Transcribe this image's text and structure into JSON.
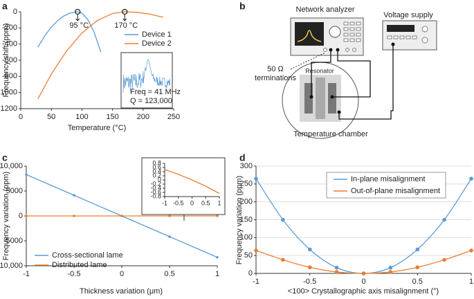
{
  "panel_labels": [
    "a",
    "b",
    "c",
    "d"
  ],
  "chart_data": [
    {
      "type": "line",
      "ylabel": "Frequency shift (ppm)",
      "xlabel": "Temperature (°C)",
      "xlim": [
        0,
        250
      ],
      "xticks": [
        0,
        50,
        100,
        150,
        200,
        250
      ],
      "ylim": [
        -1200,
        0
      ],
      "yticks": [
        0,
        -200,
        -400,
        -600,
        -800,
        -1000,
        -1200
      ],
      "grid": false,
      "legend": "upper right",
      "peak_markers": true,
      "annotations": [
        "95 °C",
        "170 °C"
      ],
      "inset_text": [
        "Freq = 41 MHz",
        "Q = 123,000"
      ],
      "series": [
        {
          "name": "Device 1",
          "color": "#5b9bd5",
          "x": [
            28,
            40,
            50,
            60,
            70,
            80,
            93,
            100,
            110,
            120,
            131
          ],
          "values": [
            -437,
            -289,
            -190,
            -112,
            -54,
            -17,
            0,
            -17,
            -101,
            -255,
            -500
          ]
        },
        {
          "name": "Device 2",
          "color": "#ed7d31",
          "x": [
            28,
            50,
            75,
            100,
            125,
            150,
            170,
            190,
            210,
            233
          ],
          "values": [
            -1080,
            -772,
            -484,
            -263,
            -109,
            -21,
            0,
            -7,
            -28,
            -69
          ]
        }
      ]
    },
    {
      "type": "line",
      "ylabel": "Frequency variation (ppm)",
      "xlabel": "Thickness variation (μm)",
      "xlim": [
        -1,
        1
      ],
      "xticks": [
        -1,
        -0.5,
        0,
        0.5,
        1
      ],
      "ylim": [
        -10000,
        10000
      ],
      "yticks": [
        {
          "value": 10000,
          "label": "10,000"
        },
        5000,
        0,
        -5000,
        {
          "value": -10000,
          "label": "-10,000"
        }
      ],
      "grid": false,
      "legend": "lower left",
      "markers": true,
      "series": [
        {
          "name": "Cross-sectional lame",
          "color": "#5b9bd5",
          "x": [
            -1,
            -0.5,
            0,
            0.5,
            1
          ],
          "values": [
            8300,
            4150,
            0,
            -4150,
            -8300
          ]
        },
        {
          "name": "Distributed lame",
          "color": "#ed7d31",
          "x": [
            -1,
            -0.5,
            0,
            0.5,
            1
          ],
          "values": [
            0,
            0,
            0,
            0,
            0
          ]
        }
      ]
    },
    {
      "type": "line",
      "xlim": [
        -1,
        1
      ],
      "xticks": [
        -1,
        -0.5,
        0,
        0.5,
        1
      ],
      "ylim": [
        -0.8,
        0.8
      ],
      "yticks": [
        0.8,
        0.6,
        0.4,
        0.2,
        0,
        -0.2,
        -0.4,
        -0.6,
        -0.8
      ],
      "grid": false,
      "series": [
        {
          "color": "#ed7d31",
          "x": [
            -1,
            -0.5,
            0,
            0.5,
            1
          ],
          "values": [
            0.5,
            0.27,
            0,
            -0.3,
            -0.65
          ]
        }
      ]
    },
    {
      "type": "line",
      "ylabel": "Frequency variation (ppm)",
      "xlabel": "<100> Crystallographic axis misalignment (°)",
      "xlim": [
        -1,
        1
      ],
      "xticks": [
        -1,
        -0.5,
        0,
        0.5,
        1
      ],
      "ylim": [
        0,
        300
      ],
      "yticks": [
        0,
        50,
        100,
        150,
        200,
        250,
        300
      ],
      "grid": true,
      "legend": "upper center",
      "markers": true,
      "smooth": true,
      "series": [
        {
          "name": "In-plane misalignment",
          "color": "#5b9bd5",
          "x": [
            -1,
            -0.75,
            -0.5,
            -0.25,
            0,
            0.25,
            0.5,
            0.75,
            1
          ],
          "values": [
            265,
            150,
            67,
            16,
            0,
            16,
            67,
            150,
            265
          ]
        },
        {
          "name": "Out-of-plane misalignment",
          "color": "#ed7d31",
          "x": [
            -1,
            -0.75,
            -0.5,
            -0.25,
            0,
            0.25,
            0.5,
            0.75,
            1
          ],
          "values": [
            64,
            38,
            17,
            4,
            0,
            4,
            17,
            38,
            64
          ]
        }
      ]
    }
  ],
  "diagram": {
    "network_analyzer": "Network analyzer",
    "voltage_supply": "Voltage supply",
    "terminations": [
      "50 Ω",
      "terminations"
    ],
    "resonator": "Resonator",
    "chamber": "Temperature chamber"
  }
}
